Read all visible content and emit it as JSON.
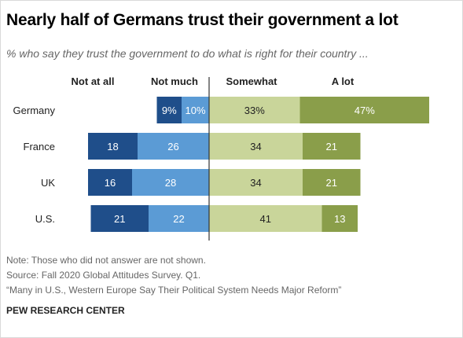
{
  "title": "Nearly half of Germans trust their government a lot",
  "subtitle": "% who say they trust the government to do what is right for their country ...",
  "chart_data": {
    "type": "bar",
    "orientation": "horizontal-diverging",
    "categories": [
      "Germany",
      "France",
      "UK",
      "U.S."
    ],
    "series": [
      {
        "name": "Not at all",
        "values": [
          9,
          18,
          16,
          21
        ],
        "labels": [
          "9%",
          "18",
          "16",
          "21"
        ],
        "color": "#1f4e8a",
        "side": "negative"
      },
      {
        "name": "Not much",
        "values": [
          10,
          26,
          28,
          22
        ],
        "labels": [
          "10%",
          "26",
          "28",
          "22"
        ],
        "color": "#5b9bd5",
        "side": "negative"
      },
      {
        "name": "Somewhat",
        "values": [
          33,
          34,
          34,
          41
        ],
        "labels": [
          "33%",
          "34",
          "34",
          "41"
        ],
        "color": "#c9d59a",
        "side": "positive"
      },
      {
        "name": "A lot",
        "values": [
          47,
          21,
          21,
          13
        ],
        "labels": [
          "47%",
          "21",
          "21",
          "13"
        ],
        "color": "#8a9e4a",
        "side": "positive"
      }
    ],
    "legend": "top",
    "grid": false
  },
  "notes": {
    "note": "Note: Those who did not answer are not shown.",
    "source": "Source: Fall 2020 Global Attitudes Survey. Q1.",
    "report": "“Many in U.S., Western Europe Say Their Political System Needs Major Reform”"
  },
  "brand": "PEW RESEARCH CENTER"
}
